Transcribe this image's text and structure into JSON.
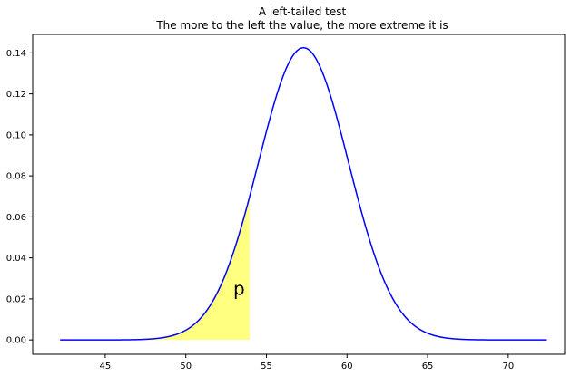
{
  "chart_data": {
    "type": "line",
    "title": "A left-tailed test",
    "subtitle": "The more to the left the value, the more extreme it is",
    "xlabel": "",
    "ylabel": "",
    "xlim": [
      40.5,
      73.5
    ],
    "ylim": [
      -0.007,
      0.149
    ],
    "xticks": [
      45,
      50,
      55,
      60,
      65,
      70
    ],
    "yticks": [
      0.0,
      0.02,
      0.04,
      0.06,
      0.08,
      0.1,
      0.12,
      0.14
    ],
    "ytick_labels": [
      "0.00",
      "0.02",
      "0.04",
      "0.06",
      "0.08",
      "0.10",
      "0.12",
      "0.14"
    ],
    "grid": false,
    "series": [
      {
        "kind": "normal-pdf",
        "mean": 57.3,
        "sd": 2.8,
        "x_range": [
          42.2,
          72.4
        ],
        "color": "#0000ff"
      }
    ],
    "shaded_region": {
      "x_from": 42.2,
      "x_to": 53.95,
      "color": "#ffff80",
      "label": "p",
      "label_x": 53.3,
      "label_y": 0.022
    }
  }
}
